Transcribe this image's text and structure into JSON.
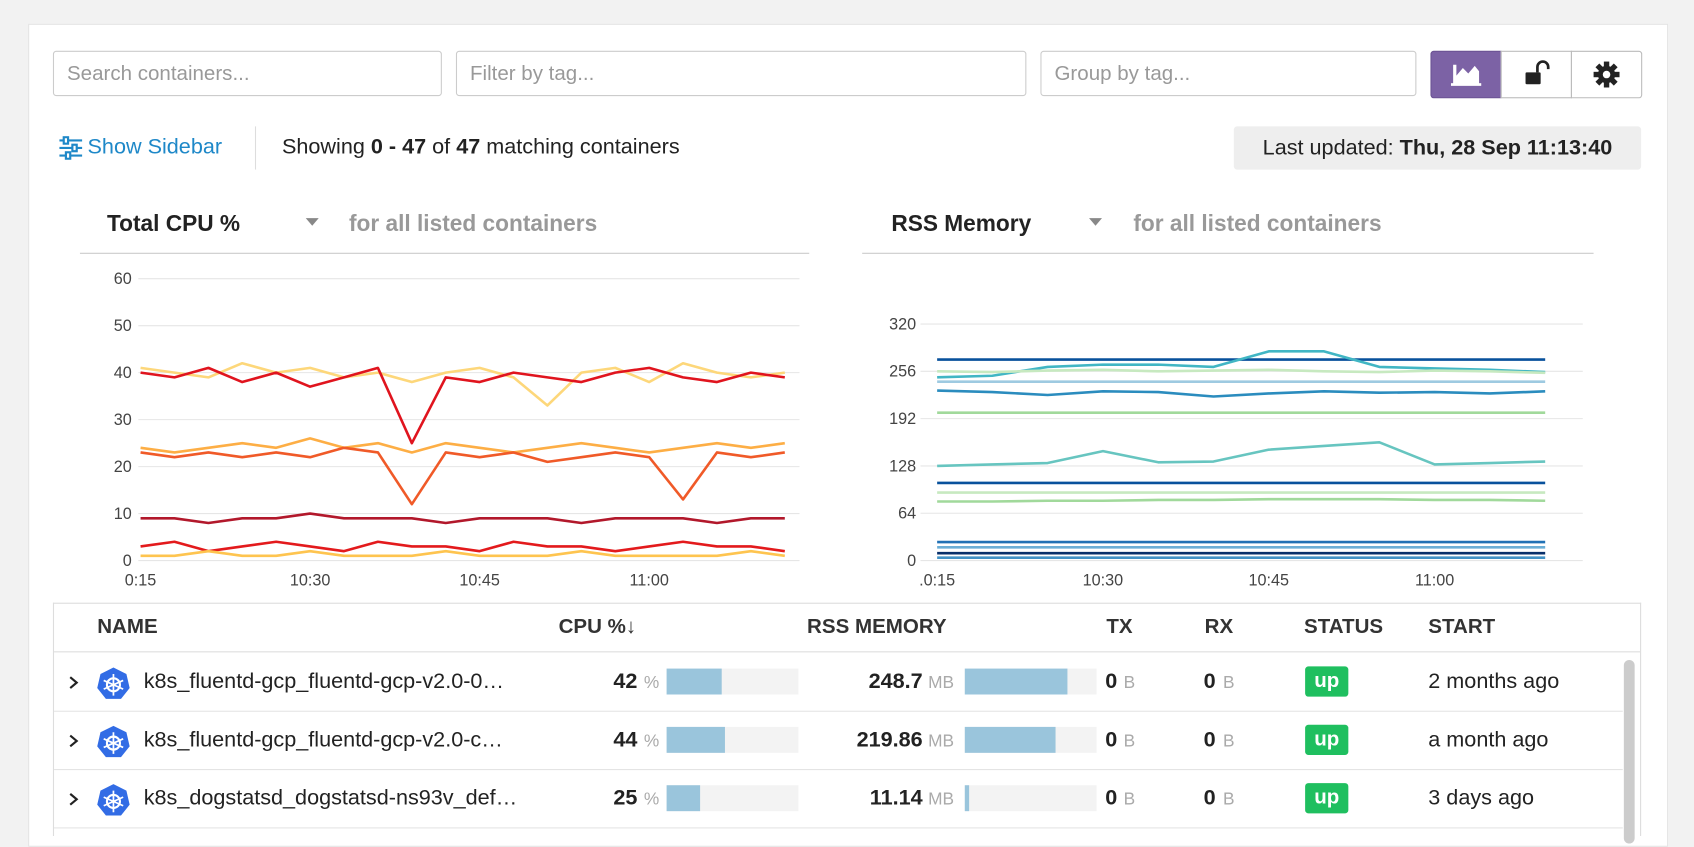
{
  "toolbar": {
    "search_placeholder": "Search containers...",
    "filter_placeholder": "Filter by tag...",
    "group_placeholder": "Group by tag..."
  },
  "status_bar": {
    "sidebar_link": "Show Sidebar",
    "showing_prefix": "Showing",
    "range": "0 - 47",
    "of": "of",
    "total": "47",
    "suffix": "matching containers",
    "updated_label": "Last updated:",
    "updated_time": "Thu, 28 Sep 11:13:40"
  },
  "chart_data": [
    {
      "type": "line",
      "title": "Total CPU %",
      "subtitle": "for all listed containers",
      "x": [
        15,
        18,
        21,
        24,
        27,
        30,
        33,
        36,
        39,
        42,
        45,
        48,
        51,
        54,
        57,
        60,
        63,
        66,
        69,
        72
      ],
      "xlim": [
        14.8,
        73.3
      ],
      "xticks": [
        {
          "value": 15,
          "label": "0:15"
        },
        {
          "value": 30,
          "label": "10:30"
        },
        {
          "value": 45,
          "label": "10:45"
        },
        {
          "value": 60,
          "label": "11:00"
        }
      ],
      "ylim": [
        0,
        60
      ],
      "yticks": [
        0,
        10,
        20,
        30,
        40,
        50,
        60
      ],
      "grid": true,
      "series": [
        {
          "color": "#fdd77a",
          "values": [
            41,
            40,
            39,
            42,
            40,
            41,
            39,
            40,
            38,
            40,
            41,
            39,
            33,
            40,
            41,
            38,
            42,
            40,
            39,
            40
          ]
        },
        {
          "color": "#e0141e",
          "values": [
            40,
            39,
            41,
            38,
            40,
            37,
            39,
            41,
            25,
            39,
            38,
            40,
            39,
            38,
            40,
            41,
            39,
            38,
            40,
            39
          ]
        },
        {
          "color": "#fdae45",
          "values": [
            24,
            23,
            24,
            25,
            24,
            26,
            24,
            25,
            23,
            25,
            24,
            23,
            24,
            25,
            24,
            23,
            24,
            25,
            24,
            25
          ]
        },
        {
          "color": "#f05a28",
          "values": [
            23,
            22,
            23,
            22,
            23,
            22,
            24,
            23,
            12,
            23,
            22,
            23,
            21,
            22,
            23,
            22,
            13,
            23,
            22,
            23
          ]
        },
        {
          "color": "#b2182b",
          "values": [
            9,
            9,
            8,
            9,
            9,
            10,
            9,
            9,
            9,
            8,
            9,
            9,
            9,
            8,
            9,
            9,
            9,
            8,
            9,
            9
          ]
        },
        {
          "color": "#e31a1c",
          "values": [
            3,
            4,
            2,
            3,
            4,
            3,
            2,
            4,
            3,
            3,
            2,
            4,
            3,
            3,
            2,
            3,
            4,
            3,
            3,
            2
          ]
        },
        {
          "color": "#fec44f",
          "values": [
            1,
            1,
            2,
            1,
            1,
            2,
            1,
            1,
            1,
            2,
            1,
            1,
            1,
            2,
            1,
            1,
            1,
            1,
            2,
            1
          ]
        }
      ]
    },
    {
      "type": "line",
      "title": "RSS Memory",
      "subtitle": "for all listed containers",
      "x": [
        15,
        20,
        25,
        30,
        35,
        40,
        45,
        50,
        55,
        60,
        65,
        70
      ],
      "xlim": [
        13.5,
        73.4
      ],
      "xticks": [
        {
          "value": 15,
          "label": ".0:15"
        },
        {
          "value": 30,
          "label": "10:30"
        },
        {
          "value": 45,
          "label": "10:45"
        },
        {
          "value": 60,
          "label": "11:00"
        }
      ],
      "ylim": [
        0,
        320
      ],
      "yticks": [
        0,
        64,
        128,
        192,
        256,
        320
      ],
      "grid": true,
      "series": [
        {
          "color": "#08519c",
          "values": [
            272,
            272,
            272,
            272,
            272,
            272,
            272,
            272,
            272,
            272,
            272,
            272
          ]
        },
        {
          "color": "#41b6c4",
          "values": [
            248,
            250,
            262,
            265,
            265,
            262,
            283,
            283,
            262,
            260,
            258,
            255
          ]
        },
        {
          "color": "#c7e9c0",
          "values": [
            256,
            255,
            257,
            258,
            256,
            257,
            258,
            256,
            255,
            257,
            256,
            254
          ]
        },
        {
          "color": "#9ecae1",
          "values": [
            242,
            242,
            242,
            242,
            242,
            242,
            242,
            242,
            242,
            242,
            242,
            242
          ]
        },
        {
          "color": "#2b8cbe",
          "values": [
            230,
            228,
            224,
            229,
            228,
            222,
            226,
            229,
            227,
            228,
            226,
            229
          ]
        },
        {
          "color": "#a1d99b",
          "values": [
            200,
            200,
            200,
            200,
            200,
            200,
            200,
            200,
            200,
            200,
            200,
            200
          ]
        },
        {
          "color": "#67c5c0",
          "values": [
            128,
            130,
            132,
            148,
            133,
            134,
            150,
            155,
            160,
            130,
            132,
            134
          ]
        },
        {
          "color": "#08519c",
          "values": [
            105,
            105,
            105,
            105,
            105,
            105,
            105,
            105,
            105,
            105,
            105,
            105
          ]
        },
        {
          "color": "#c7e9c0",
          "values": [
            92,
            92,
            92,
            92,
            92,
            92,
            92,
            92,
            92,
            92,
            92,
            92
          ]
        },
        {
          "color": "#a1d99b",
          "values": [
            80,
            80,
            81,
            81,
            82,
            82,
            83,
            83,
            83,
            82,
            82,
            81
          ]
        },
        {
          "color": "#2171b5",
          "values": [
            25,
            25,
            25,
            25,
            25,
            25,
            25,
            25,
            25,
            25,
            25,
            25
          ]
        },
        {
          "color": "#6baed6",
          "values": [
            18,
            18,
            18,
            18,
            18,
            18,
            18,
            18,
            18,
            18,
            18,
            18
          ]
        },
        {
          "color": "#08306b",
          "values": [
            10,
            10,
            10,
            10,
            10,
            10,
            10,
            10,
            10,
            10,
            10,
            10
          ]
        },
        {
          "color": "#4292c6",
          "values": [
            4,
            4,
            4,
            4,
            4,
            4,
            4,
            4,
            4,
            4,
            4,
            4
          ]
        }
      ]
    }
  ],
  "table": {
    "columns": [
      "NAME",
      "CPU %↓",
      "RSS MEMORY",
      "TX",
      "RX",
      "STATUS",
      "START"
    ],
    "rows": [
      {
        "name": "k8s_fluentd-gcp_fluentd-gcp-v2.0-0…",
        "cpu": 42,
        "cpu_unit": "%",
        "memory": 248.7,
        "memory_unit": "MB",
        "tx": 0,
        "tx_unit": "B",
        "rx": 0,
        "rx_unit": "B",
        "status": "up",
        "start": "2 months ago"
      },
      {
        "name": "k8s_fluentd-gcp_fluentd-gcp-v2.0-c…",
        "cpu": 44,
        "cpu_unit": "%",
        "memory": 219.86,
        "memory_unit": "MB",
        "tx": 0,
        "tx_unit": "B",
        "rx": 0,
        "rx_unit": "B",
        "status": "up",
        "start": "a month ago"
      },
      {
        "name": "k8s_dogstatsd_dogstatsd-ns93v_def…",
        "cpu": 25,
        "cpu_unit": "%",
        "memory": 11.14,
        "memory_unit": "MB",
        "tx": 0,
        "tx_unit": "B",
        "rx": 0,
        "rx_unit": "B",
        "status": "up",
        "start": "3 days ago"
      }
    ]
  }
}
